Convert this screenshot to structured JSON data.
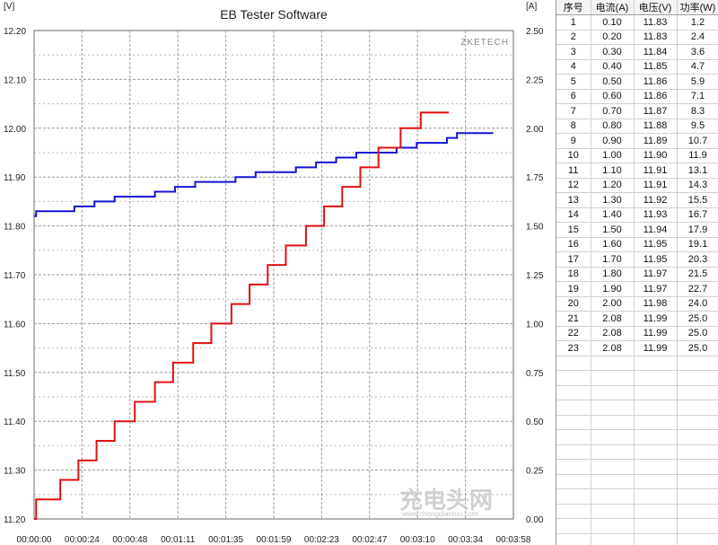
{
  "chart_data": {
    "type": "line",
    "title": "EB Tester Software",
    "watermark": "ZKETECH",
    "site_mark": "充电头网",
    "site_url": "www.chongdiantou.com",
    "left_axis": {
      "unit": "[V]",
      "range": [
        11.2,
        12.2
      ],
      "ticks": [
        "11.20",
        "11.30",
        "11.40",
        "11.50",
        "11.60",
        "11.70",
        "11.80",
        "11.90",
        "12.00",
        "12.10",
        "12.20"
      ]
    },
    "right_axis": {
      "unit": "[A]",
      "range": [
        0,
        2.5
      ],
      "ticks": [
        "0.00",
        "0.25",
        "0.50",
        "0.75",
        "1.00",
        "1.25",
        "1.50",
        "1.75",
        "2.00",
        "2.25",
        "2.50"
      ]
    },
    "x_axis": {
      "range_seconds": [
        0,
        238
      ],
      "ticks": [
        "00:00:00",
        "00:00:24",
        "00:00:48",
        "00:01:11",
        "00:01:35",
        "00:01:59",
        "00:02:23",
        "00:02:47",
        "00:03:10",
        "00:03:34",
        "00:03:58"
      ]
    },
    "grid": true,
    "colors": {
      "voltage": "#1414d2",
      "current": "#e01010",
      "grid": "#9a9a9a"
    },
    "series": [
      {
        "name": "电压(V)",
        "axis": "left",
        "step": true,
        "x": [
          0,
          1,
          10,
          20,
          30,
          40,
          50,
          60,
          70,
          80,
          90,
          100,
          110,
          120,
          130,
          140,
          150,
          160,
          170,
          180,
          190,
          200,
          205,
          210,
          220,
          228
        ],
        "values": [
          11.82,
          11.83,
          11.83,
          11.84,
          11.85,
          11.86,
          11.86,
          11.87,
          11.88,
          11.89,
          11.89,
          11.9,
          11.91,
          11.91,
          11.92,
          11.93,
          11.94,
          11.95,
          11.95,
          11.96,
          11.97,
          11.97,
          11.98,
          11.99,
          11.99,
          11.99
        ]
      },
      {
        "name": "电流(A)",
        "axis": "right",
        "step": true,
        "x": [
          0,
          1,
          13,
          22,
          31,
          40,
          50,
          60,
          69,
          79,
          88,
          98,
          107,
          116,
          125,
          135,
          144,
          153,
          162,
          171,
          182,
          192,
          206
        ],
        "values": [
          0.0,
          0.1,
          0.2,
          0.3,
          0.4,
          0.5,
          0.6,
          0.7,
          0.8,
          0.9,
          1.0,
          1.1,
          1.2,
          1.3,
          1.4,
          1.5,
          1.6,
          1.7,
          1.8,
          1.9,
          2.0,
          2.08,
          2.08
        ]
      }
    ]
  },
  "table": {
    "headers": [
      "序号",
      "电流(A)",
      "电压(V)",
      "功率(W)"
    ],
    "rows": [
      [
        "1",
        "0.10",
        "11.83",
        "1.2"
      ],
      [
        "2",
        "0.20",
        "11.83",
        "2.4"
      ],
      [
        "3",
        "0.30",
        "11.84",
        "3.6"
      ],
      [
        "4",
        "0.40",
        "11.85",
        "4.7"
      ],
      [
        "5",
        "0.50",
        "11.86",
        "5.9"
      ],
      [
        "6",
        "0.60",
        "11.86",
        "7.1"
      ],
      [
        "7",
        "0.70",
        "11.87",
        "8.3"
      ],
      [
        "8",
        "0.80",
        "11.88",
        "9.5"
      ],
      [
        "9",
        "0.90",
        "11.89",
        "10.7"
      ],
      [
        "10",
        "1.00",
        "11.90",
        "11.9"
      ],
      [
        "11",
        "1.10",
        "11.91",
        "13.1"
      ],
      [
        "12",
        "1.20",
        "11.91",
        "14.3"
      ],
      [
        "13",
        "1.30",
        "11.92",
        "15.5"
      ],
      [
        "14",
        "1.40",
        "11.93",
        "16.7"
      ],
      [
        "15",
        "1.50",
        "11.94",
        "17.9"
      ],
      [
        "16",
        "1.60",
        "11.95",
        "19.1"
      ],
      [
        "17",
        "1.70",
        "11.95",
        "20.3"
      ],
      [
        "18",
        "1.80",
        "11.97",
        "21.5"
      ],
      [
        "19",
        "1.90",
        "11.97",
        "22.7"
      ],
      [
        "20",
        "2.00",
        "11.98",
        "24.0"
      ],
      [
        "21",
        "2.08",
        "11.99",
        "25.0"
      ],
      [
        "22",
        "2.08",
        "11.99",
        "25.0"
      ],
      [
        "23",
        "2.08",
        "11.99",
        "25.0"
      ]
    ],
    "empty_rows": 14
  }
}
